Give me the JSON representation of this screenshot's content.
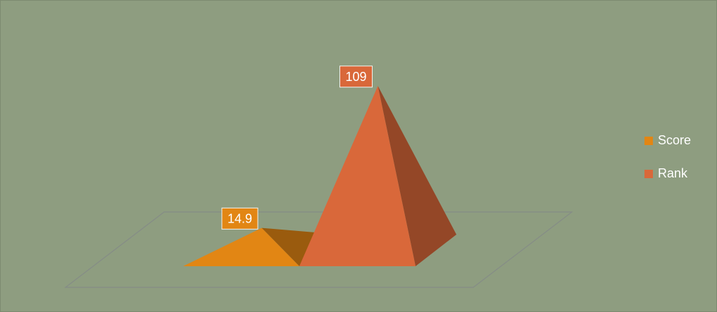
{
  "chart_data": {
    "type": "pyramid",
    "series": [
      {
        "name": "Score",
        "color": "#e28614",
        "values": [
          14.9
        ]
      },
      {
        "name": "Rank",
        "color": "#d9683a",
        "values": [
          109
        ]
      }
    ],
    "legend": "right"
  }
}
